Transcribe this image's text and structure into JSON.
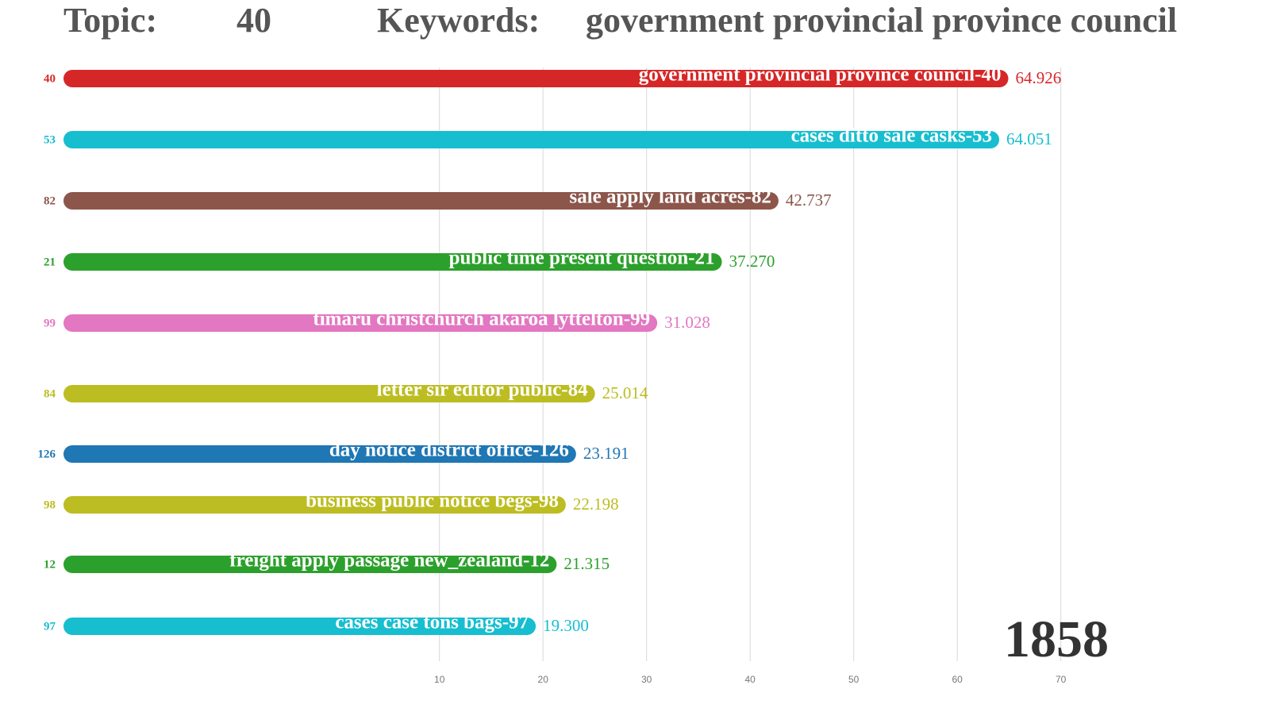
{
  "chart_data": {
    "type": "bar",
    "orientation": "horizontal",
    "title_label": "Topic:",
    "title_topic": "40",
    "keywords_label": "Keywords:",
    "keywords": "government provincial province council",
    "period": "1858",
    "categories": [
      "40",
      "53",
      "82",
      "21",
      "99",
      "84",
      "126",
      "98",
      "12",
      "97"
    ],
    "bar_labels": [
      "government provincial province council-40",
      "cases ditto sale casks-53",
      "sale apply land acres-82",
      "public time present question-21",
      "timaru christchurch akaroa lyttelton-99",
      "letter sir editor public-84",
      "day notice district office-126",
      "business public notice begs-98",
      "freight apply passage new_zealand-12",
      "cases case tons bags-97"
    ],
    "values": [
      64.926,
      64.051,
      42.737,
      37.27,
      31.028,
      25.014,
      23.191,
      22.198,
      21.315,
      19.3
    ],
    "value_labels": [
      "64.926",
      "64.051",
      "42.737",
      "37.270",
      "31.028",
      "25.014",
      "23.191",
      "22.198",
      "21.315",
      "19.300"
    ],
    "colors": [
      "#d62728",
      "#17becf",
      "#8c564b",
      "#2ca02c",
      "#e377c2",
      "#bcbd22",
      "#1f77b4",
      "#bcbd22",
      "#2ca02c",
      "#17becf"
    ],
    "xlim": [
      -26.3,
      86.5
    ],
    "xticks": [
      10,
      20,
      30,
      40,
      50,
      60,
      70
    ],
    "grid": true
  }
}
